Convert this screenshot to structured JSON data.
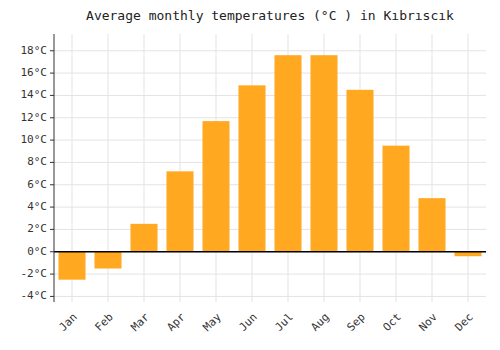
{
  "chart_data": {
    "type": "bar",
    "title": "Average monthly temperatures (°C ) in Kıbrıscık",
    "categories": [
      "Jan",
      "Feb",
      "Mar",
      "Apr",
      "May",
      "Jun",
      "Jul",
      "Aug",
      "Sep",
      "Oct",
      "Nov",
      "Dec"
    ],
    "values": [
      -2.5,
      -1.5,
      2.5,
      7.2,
      11.7,
      14.9,
      17.6,
      17.6,
      14.5,
      9.5,
      4.8,
      -0.4
    ],
    "color": "#FFA820",
    "ylim": [
      -4.5,
      19.5
    ],
    "yticks": [
      {
        "value": -4,
        "label": "-4°C"
      },
      {
        "value": -2,
        "label": "-2°C"
      },
      {
        "value": 0,
        "label": "0°C"
      },
      {
        "value": 2,
        "label": "2°C"
      },
      {
        "value": 4,
        "label": "4°C"
      },
      {
        "value": 6,
        "label": "6°C"
      },
      {
        "value": 8,
        "label": "8°C"
      },
      {
        "value": 10,
        "label": "10°C"
      },
      {
        "value": 12,
        "label": "12°C"
      },
      {
        "value": 14,
        "label": "14°C"
      },
      {
        "value": 16,
        "label": "16°C"
      },
      {
        "value": 18,
        "label": "18°C"
      }
    ],
    "grid": true
  }
}
